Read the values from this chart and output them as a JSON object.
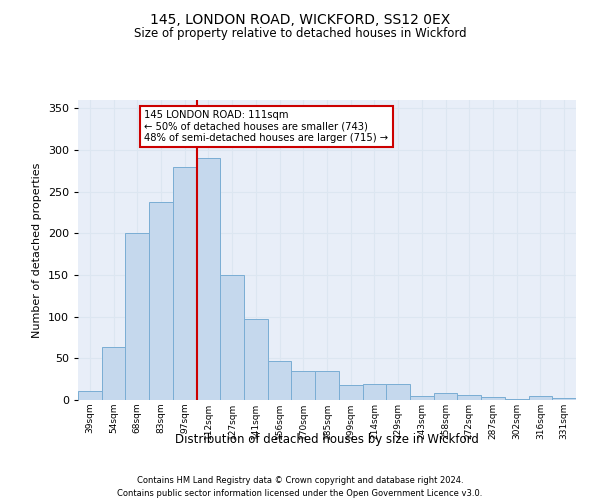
{
  "title1": "145, LONDON ROAD, WICKFORD, SS12 0EX",
  "title2": "Size of property relative to detached houses in Wickford",
  "xlabel": "Distribution of detached houses by size in Wickford",
  "ylabel": "Number of detached properties",
  "categories": [
    "39sqm",
    "54sqm",
    "68sqm",
    "83sqm",
    "97sqm",
    "112sqm",
    "127sqm",
    "141sqm",
    "156sqm",
    "170sqm",
    "185sqm",
    "199sqm",
    "214sqm",
    "229sqm",
    "243sqm",
    "258sqm",
    "272sqm",
    "287sqm",
    "302sqm",
    "316sqm",
    "331sqm"
  ],
  "values": [
    11,
    64,
    200,
    238,
    280,
    291,
    150,
    97,
    47,
    35,
    35,
    18,
    19,
    19,
    5,
    8,
    6,
    4,
    1,
    5,
    3
  ],
  "bar_color": "#c5d8ed",
  "bar_edge_color": "#7aadd4",
  "vline_index": 5,
  "annotation_text_line1": "145 LONDON ROAD: 111sqm",
  "annotation_text_line2": "← 50% of detached houses are smaller (743)",
  "annotation_text_line3": "48% of semi-detached houses are larger (715) →",
  "vline_color": "#cc0000",
  "annotation_box_edge_color": "#cc0000",
  "grid_color": "#dce6f1",
  "background_color": "#e8eef8",
  "ylim": [
    0,
    360
  ],
  "yticks": [
    0,
    50,
    100,
    150,
    200,
    250,
    300,
    350
  ],
  "footer1": "Contains HM Land Registry data © Crown copyright and database right 2024.",
  "footer2": "Contains public sector information licensed under the Open Government Licence v3.0."
}
